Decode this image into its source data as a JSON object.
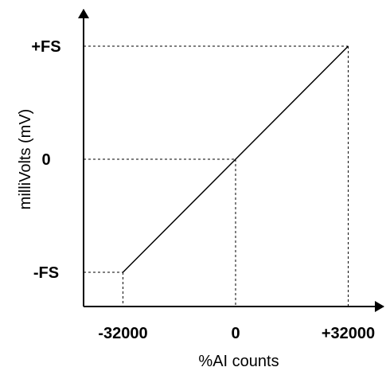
{
  "chart_data": {
    "type": "line",
    "title": "",
    "xlabel": "%AI counts",
    "ylabel": "milliVolts (mV)",
    "x_ticks": [
      {
        "value": -32000,
        "label": "-32000"
      },
      {
        "value": 0,
        "label": "0"
      },
      {
        "value": 32000,
        "label": "+32000"
      }
    ],
    "y_ticks": [
      {
        "value": -1,
        "label": "-FS"
      },
      {
        "value": 0,
        "label": "0"
      },
      {
        "value": 1,
        "label": "+FS"
      }
    ],
    "series": [
      {
        "x": [
          -32000,
          0,
          32000
        ],
        "y": [
          -1,
          0,
          1
        ]
      }
    ],
    "reference_lines": "dashed guides from each tick to the line",
    "grid": false,
    "legend": "none",
    "colors": {
      "line": "#000000",
      "axes": "#000000",
      "background": "#ffffff"
    }
  }
}
